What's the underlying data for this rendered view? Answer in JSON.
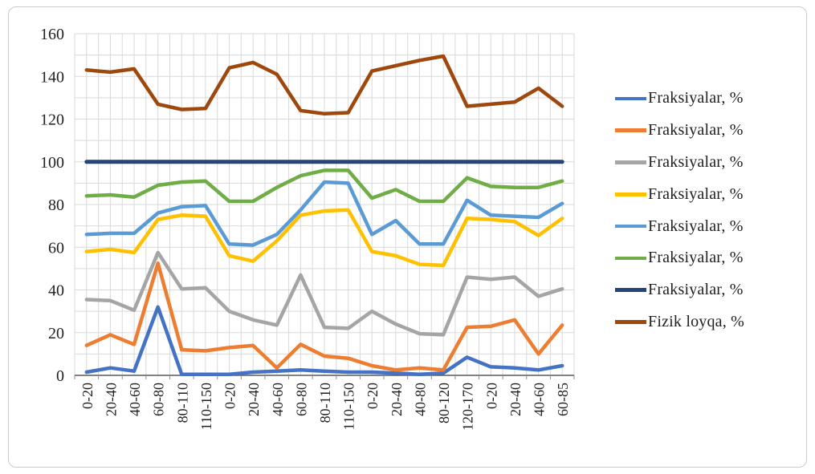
{
  "chart_data": {
    "type": "line",
    "title": "",
    "xlabel": "",
    "ylabel": "",
    "ylim": [
      0,
      160
    ],
    "ytick_step": 20,
    "y_minor_gridline_step": 10,
    "grid": true,
    "legend_position": "right",
    "axis_text_color": "#1f1f1f",
    "gridline_color": "#d9d9d9",
    "axis_line_color": "#595959",
    "categories": [
      "0-20",
      "20-40",
      "40-60",
      "60-80",
      "80-110",
      "110-150",
      "0-20",
      "20-40",
      "40-60",
      "60-80",
      "80-110",
      "110-150",
      "0-20",
      "20-40",
      "40-80",
      "80-120",
      "120-170",
      "0-20",
      "20-40",
      "40-60",
      "60-85"
    ],
    "series": [
      {
        "name": "Fraksiyalar, %",
        "color": "#4472C4",
        "values": [
          1.5,
          3.5,
          2,
          32,
          0.5,
          0.5,
          0.5,
          1.5,
          2,
          2.5,
          2,
          1.5,
          1.5,
          1,
          0.5,
          1,
          8.5,
          4,
          3.5,
          2.5,
          4.5
        ]
      },
      {
        "name": "Fraksiyalar, %",
        "color": "#ED7D31",
        "values": [
          14,
          19,
          14.5,
          52.5,
          12,
          11.5,
          13,
          14,
          3.5,
          14.5,
          9,
          8,
          4.5,
          2.5,
          3.5,
          2.5,
          22.5,
          23,
          26,
          10,
          23.5
        ]
      },
      {
        "name": "Fraksiyalar, %",
        "color": "#A5A5A5",
        "values": [
          35.5,
          35,
          30.5,
          57.5,
          40.5,
          41,
          30,
          26,
          23.5,
          47,
          22.5,
          22,
          30,
          24,
          19.5,
          19,
          46,
          45,
          46,
          37,
          40.5
        ]
      },
      {
        "name": "Fraksiyalar, %",
        "color": "#FFC000",
        "values": [
          58,
          59,
          57.5,
          73,
          75,
          74.5,
          56,
          53.5,
          63,
          75,
          77,
          77.5,
          58,
          56,
          52,
          51.5,
          73.5,
          73,
          72,
          65.5,
          73.5
        ]
      },
      {
        "name": "Fraksiyalar, %",
        "color": "#5B9BD5",
        "values": [
          66,
          66.5,
          66.5,
          76,
          79,
          79.5,
          61.5,
          61,
          66,
          77.5,
          90.5,
          90,
          66,
          72.5,
          61.5,
          61.5,
          82,
          75,
          74.5,
          74,
          80.5
        ]
      },
      {
        "name": "Fraksiyalar, %",
        "color": "#70AD47",
        "values": [
          84,
          84.5,
          83.5,
          89,
          90.5,
          91,
          81.5,
          81.5,
          88,
          93.5,
          96,
          96,
          83,
          87,
          81.5,
          81.5,
          92.5,
          88.5,
          88,
          88,
          91
        ]
      },
      {
        "name": "Fraksiyalar, %",
        "color": "#264478",
        "values": [
          100,
          100,
          100,
          100,
          100,
          100,
          100,
          100,
          100,
          100,
          100,
          100,
          100,
          100,
          100,
          100,
          100,
          100,
          100,
          100,
          100
        ]
      },
      {
        "name": "Fizik loyqa, %",
        "color": "#9E480E",
        "values": [
          143,
          142,
          143.5,
          127,
          124.5,
          125,
          144,
          146.5,
          141,
          124,
          122.5,
          123,
          142.5,
          145,
          147.5,
          149.5,
          126,
          127,
          128,
          134.5,
          126
        ]
      }
    ]
  }
}
